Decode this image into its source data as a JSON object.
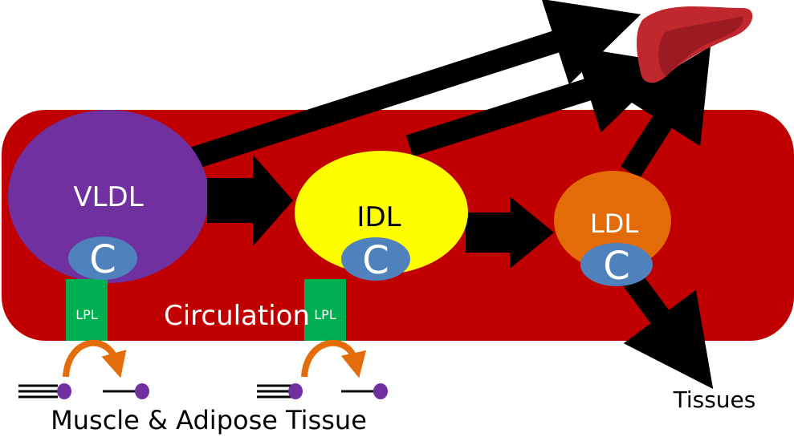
{
  "labels": {
    "vldl": "VLDL",
    "idl": "IDL",
    "ldl": "LDL",
    "c": "C",
    "lpl": "LPL",
    "circulation": "Circulation",
    "muscle_adipose": "Muscle & Adipose Tissue",
    "tissues": "Tissues"
  },
  "colors": {
    "circulation": "#c00000",
    "vldl": "#7030a0",
    "idl": "#ffff00",
    "ldl": "#e36c09",
    "c": "#4f81bd",
    "lpl": "#00b050",
    "liver": "#c0282e",
    "liver_shade": "#9b1b20",
    "curve_arrow": "#e46c0a",
    "fatty_acid_head": "#7030a0"
  }
}
